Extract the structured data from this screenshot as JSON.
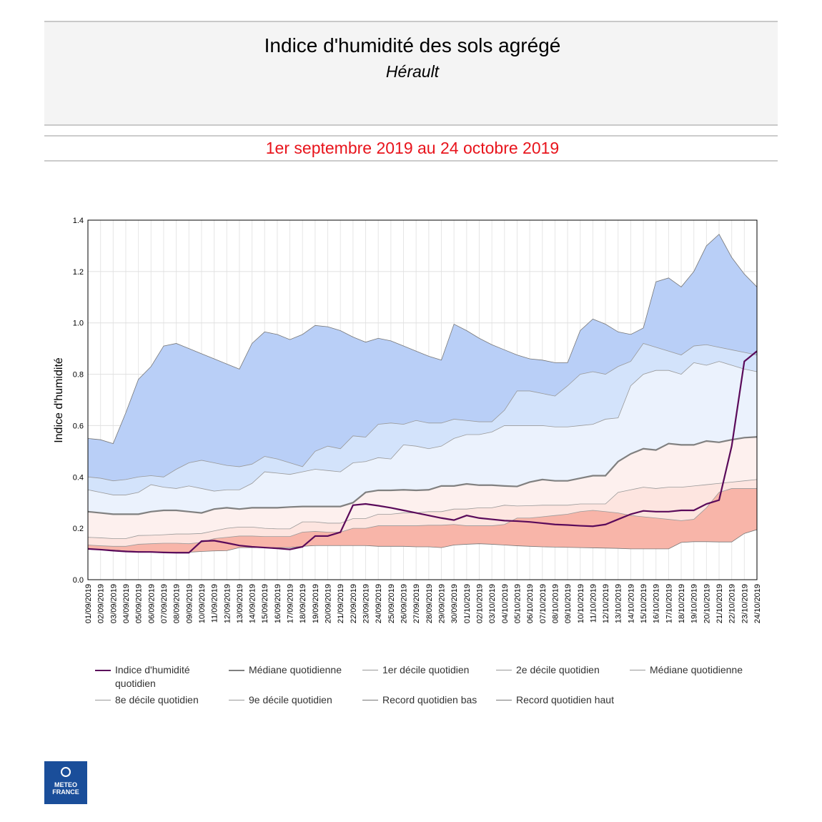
{
  "header": {
    "title": "Indice d'humidité des sols agrégé",
    "subtitle": "Hérault",
    "period": "1er septembre 2019 au 24 octobre 2019"
  },
  "logo": {
    "lines": [
      "METEO",
      "FRANCE"
    ]
  },
  "chart_data": {
    "type": "line",
    "y_label": "Indice d'humidité",
    "categories": [
      "01/09/2019",
      "02/09/2019",
      "03/09/2019",
      "04/09/2019",
      "05/09/2019",
      "06/09/2019",
      "07/09/2019",
      "08/09/2019",
      "09/09/2019",
      "10/09/2019",
      "11/09/2019",
      "12/09/2019",
      "13/09/2019",
      "14/09/2019",
      "15/09/2019",
      "16/09/2019",
      "17/09/2019",
      "18/09/2019",
      "19/09/2019",
      "20/09/2019",
      "21/09/2019",
      "22/09/2019",
      "23/09/2019",
      "24/09/2019",
      "25/09/2019",
      "26/09/2019",
      "27/09/2019",
      "28/09/2019",
      "29/09/2019",
      "30/09/2019",
      "01/10/2019",
      "02/10/2019",
      "03/10/2019",
      "04/10/2019",
      "05/10/2019",
      "06/10/2019",
      "07/10/2019",
      "08/10/2019",
      "09/10/2019",
      "10/10/2019",
      "11/10/2019",
      "12/10/2019",
      "13/10/2019",
      "14/10/2019",
      "15/10/2019",
      "16/10/2019",
      "17/10/2019",
      "18/10/2019",
      "19/10/2019",
      "20/10/2019",
      "21/10/2019",
      "22/10/2019",
      "23/10/2019",
      "24/10/2019"
    ],
    "ylim": [
      0,
      1.4
    ],
    "yticks": [
      {
        "value": 0,
        "label": "0.0"
      },
      0.2,
      0.4,
      0.6,
      0.8,
      {
        "value": 1,
        "label": "1.0"
      },
      1.2,
      1.4
    ],
    "grid": true,
    "series": [
      {
        "name": "Indice d'humidité quotidien",
        "color": "#5a0a5a",
        "width": 2.2,
        "values": [
          0.12,
          0.117,
          0.113,
          0.11,
          0.108,
          0.108,
          0.106,
          0.105,
          0.105,
          0.15,
          0.152,
          0.143,
          0.133,
          0.128,
          0.125,
          0.122,
          0.118,
          0.128,
          0.17,
          0.17,
          0.185,
          0.29,
          0.295,
          0.288,
          0.28,
          0.27,
          0.26,
          0.25,
          0.24,
          0.232,
          0.25,
          0.24,
          0.235,
          0.23,
          0.228,
          0.225,
          0.22,
          0.215,
          0.213,
          0.21,
          0.208,
          0.215,
          0.235,
          0.255,
          0.268,
          0.265,
          0.265,
          0.27,
          0.27,
          0.295,
          0.31,
          0.52,
          0.85,
          0.89
        ]
      },
      {
        "name": "Médiane quotidienne",
        "color": "#808080",
        "width": 2.2,
        "values": [
          0.265,
          0.26,
          0.255,
          0.255,
          0.255,
          0.265,
          0.27,
          0.27,
          0.265,
          0.26,
          0.275,
          0.28,
          0.275,
          0.28,
          0.28,
          0.28,
          0.283,
          0.285,
          0.285,
          0.285,
          0.285,
          0.3,
          0.34,
          0.348,
          0.348,
          0.35,
          0.348,
          0.35,
          0.365,
          0.365,
          0.373,
          0.368,
          0.368,
          0.365,
          0.363,
          0.38,
          0.39,
          0.385,
          0.385,
          0.395,
          0.405,
          0.405,
          0.46,
          0.49,
          0.51,
          0.505,
          0.53,
          0.525,
          0.525,
          0.54,
          0.535,
          0.545,
          0.553,
          0.556
        ]
      },
      {
        "name": "1er décile quotidien",
        "color": "#999999",
        "width": 0.8,
        "fill": "#fbcdc4",
        "values": [
          0.135,
          0.132,
          0.13,
          0.13,
          0.138,
          0.14,
          0.142,
          0.142,
          0.14,
          0.145,
          0.16,
          0.165,
          0.17,
          0.17,
          0.168,
          0.168,
          0.168,
          0.185,
          0.188,
          0.185,
          0.185,
          0.2,
          0.2,
          0.21,
          0.21,
          0.21,
          0.21,
          0.212,
          0.212,
          0.215,
          0.21,
          0.21,
          0.21,
          0.215,
          0.24,
          0.24,
          0.245,
          0.25,
          0.255,
          0.265,
          0.27,
          0.265,
          0.26,
          0.25,
          0.245,
          0.24,
          0.235,
          0.23,
          0.235,
          0.28,
          0.34,
          0.355,
          0.355,
          0.355
        ]
      },
      {
        "name": "2e décile quotidien",
        "color": "#999999",
        "width": 0.8,
        "fill": "#fde5e0",
        "values": [
          0.165,
          0.163,
          0.16,
          0.16,
          0.172,
          0.173,
          0.175,
          0.178,
          0.178,
          0.18,
          0.19,
          0.2,
          0.205,
          0.205,
          0.2,
          0.198,
          0.198,
          0.225,
          0.225,
          0.22,
          0.22,
          0.238,
          0.238,
          0.255,
          0.255,
          0.26,
          0.26,
          0.265,
          0.265,
          0.275,
          0.275,
          0.28,
          0.28,
          0.29,
          0.287,
          0.288,
          0.29,
          0.29,
          0.29,
          0.295,
          0.295,
          0.295,
          0.34,
          0.35,
          0.36,
          0.355,
          0.36,
          0.36,
          0.365,
          0.37,
          0.375,
          0.38,
          0.385,
          0.39
        ]
      },
      {
        "name": "Médiane quotidienne",
        "color": "#999999",
        "width": 0.8,
        "fill": "#fdf0ee",
        "values": [
          0.265,
          0.26,
          0.255,
          0.255,
          0.255,
          0.265,
          0.27,
          0.27,
          0.265,
          0.26,
          0.275,
          0.28,
          0.275,
          0.28,
          0.28,
          0.28,
          0.283,
          0.285,
          0.285,
          0.285,
          0.285,
          0.3,
          0.34,
          0.348,
          0.348,
          0.35,
          0.348,
          0.35,
          0.365,
          0.365,
          0.373,
          0.368,
          0.368,
          0.365,
          0.363,
          0.38,
          0.39,
          0.385,
          0.385,
          0.395,
          0.405,
          0.405,
          0.46,
          0.49,
          0.51,
          0.505,
          0.53,
          0.525,
          0.525,
          0.54,
          0.535,
          0.545,
          0.553,
          0.556
        ]
      },
      {
        "name": "8e décile quotidien",
        "color": "#999999",
        "width": 0.8,
        "fill": "#ebf2fd",
        "values": [
          0.35,
          0.34,
          0.33,
          0.33,
          0.34,
          0.37,
          0.36,
          0.355,
          0.365,
          0.355,
          0.345,
          0.35,
          0.35,
          0.375,
          0.42,
          0.415,
          0.41,
          0.42,
          0.43,
          0.425,
          0.42,
          0.455,
          0.46,
          0.475,
          0.47,
          0.525,
          0.52,
          0.51,
          0.52,
          0.55,
          0.565,
          0.565,
          0.575,
          0.6,
          0.6,
          0.6,
          0.6,
          0.595,
          0.595,
          0.6,
          0.605,
          0.625,
          0.63,
          0.755,
          0.8,
          0.815,
          0.815,
          0.8,
          0.845,
          0.835,
          0.85,
          0.835,
          0.82,
          0.81
        ]
      },
      {
        "name": "9e décile quotidien",
        "color": "#999999",
        "width": 0.8,
        "fill": "#d3e3fb",
        "values": [
          0.4,
          0.395,
          0.385,
          0.39,
          0.4,
          0.405,
          0.4,
          0.43,
          0.455,
          0.465,
          0.455,
          0.445,
          0.44,
          0.45,
          0.48,
          0.47,
          0.455,
          0.44,
          0.5,
          0.52,
          0.51,
          0.56,
          0.555,
          0.605,
          0.61,
          0.605,
          0.62,
          0.61,
          0.61,
          0.625,
          0.62,
          0.615,
          0.615,
          0.66,
          0.735,
          0.735,
          0.725,
          0.715,
          0.755,
          0.8,
          0.81,
          0.8,
          0.83,
          0.85,
          0.92,
          0.905,
          0.89,
          0.875,
          0.91,
          0.915,
          0.905,
          0.895,
          0.885,
          0.875
        ]
      },
      {
        "name": "Record quotidien bas",
        "color": "#777777",
        "width": 0.8,
        "values": [
          0.12,
          0.118,
          0.115,
          0.112,
          0.11,
          0.108,
          0.108,
          0.107,
          0.107,
          0.11,
          0.112,
          0.113,
          0.125,
          0.125,
          0.125,
          0.125,
          0.125,
          0.13,
          0.133,
          0.133,
          0.133,
          0.133,
          0.133,
          0.13,
          0.13,
          0.13,
          0.128,
          0.128,
          0.125,
          0.135,
          0.138,
          0.14,
          0.138,
          0.135,
          0.132,
          0.13,
          0.128,
          0.127,
          0.126,
          0.125,
          0.124,
          0.123,
          0.122,
          0.12,
          0.12,
          0.12,
          0.12,
          0.145,
          0.148,
          0.148,
          0.147,
          0.147,
          0.18,
          0.195
        ]
      },
      {
        "name": "Record quotidien haut",
        "color": "#777777",
        "width": 0.8,
        "fill": "#b9cff7",
        "values": [
          0.55,
          0.545,
          0.53,
          0.65,
          0.78,
          0.83,
          0.91,
          0.92,
          0.9,
          0.88,
          0.86,
          0.84,
          0.82,
          0.92,
          0.965,
          0.955,
          0.935,
          0.955,
          0.99,
          0.985,
          0.97,
          0.945,
          0.925,
          0.94,
          0.93,
          0.91,
          0.89,
          0.87,
          0.855,
          0.995,
          0.97,
          0.94,
          0.915,
          0.895,
          0.875,
          0.86,
          0.855,
          0.845,
          0.845,
          0.97,
          1.015,
          0.995,
          0.965,
          0.955,
          0.98,
          1.16,
          1.175,
          1.14,
          1.2,
          1.3,
          1.345,
          1.255,
          1.19,
          1.14
        ]
      }
    ],
    "lowest_band_fill": "#f8b5a9"
  }
}
